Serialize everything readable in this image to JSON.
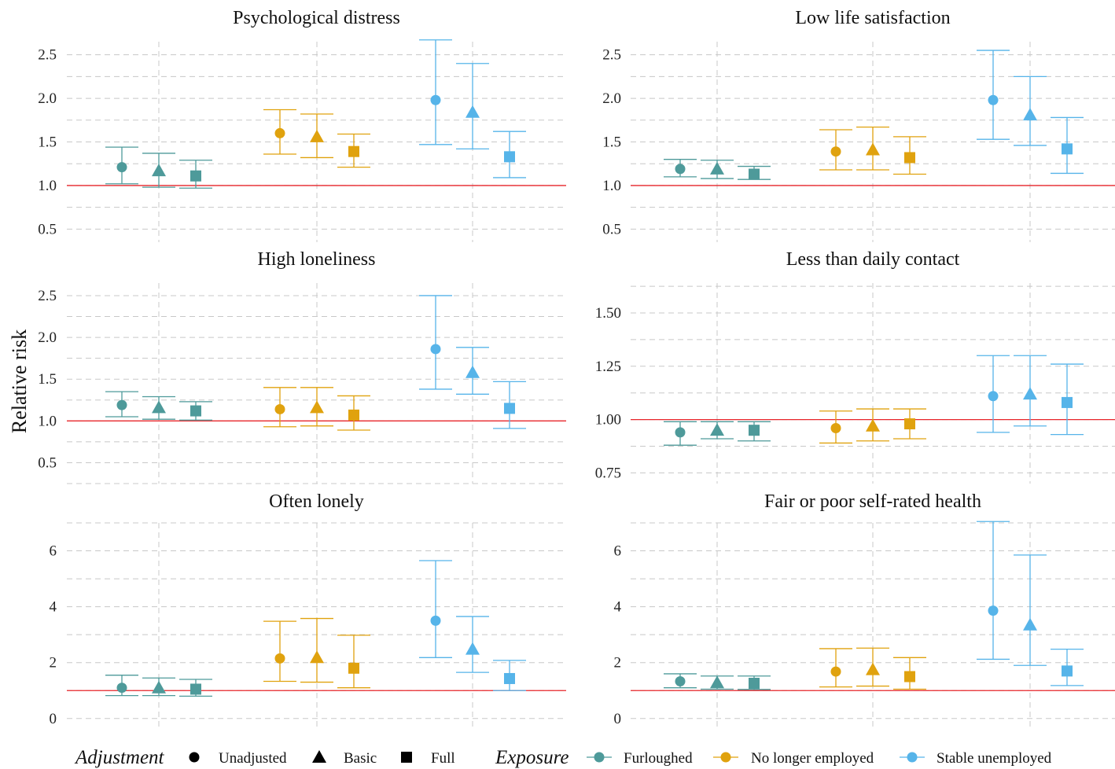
{
  "colors": {
    "Furloughed": "#4e9a9a",
    "No longer employed": "#e0a20e",
    "Stable unemployed": "#56b4e9",
    "reference_line": "#e8262b"
  },
  "y_axis_label": "Relative risk",
  "legend": {
    "adjustment_title": "Adjustment",
    "adjustment_items": [
      {
        "label": "Unadjusted",
        "shape": "circle"
      },
      {
        "label": "Basic",
        "shape": "triangle"
      },
      {
        "label": "Full",
        "shape": "square"
      }
    ],
    "exposure_title": "Exposure",
    "exposure_items": [
      "Furloughed",
      "No longer employed",
      "Stable unemployed"
    ]
  },
  "chart_data": [
    {
      "type": "errorbar",
      "title": "Psychological distress",
      "ylim": [
        0.35,
        2.65
      ],
      "yticks": [
        0.5,
        1.0,
        1.5,
        2.0,
        2.5
      ],
      "tick_labels": [
        "0.5",
        "1.0",
        "1.5",
        "2.0",
        "2.5"
      ],
      "reference": 1.0,
      "points": [
        {
          "exposure": "Furloughed",
          "adjustment": "Unadjusted",
          "rr": 1.21,
          "lo": 1.02,
          "hi": 1.44
        },
        {
          "exposure": "Furloughed",
          "adjustment": "Basic",
          "rr": 1.17,
          "lo": 0.98,
          "hi": 1.37
        },
        {
          "exposure": "Furloughed",
          "adjustment": "Full",
          "rr": 1.11,
          "lo": 0.97,
          "hi": 1.29
        },
        {
          "exposure": "No longer employed",
          "adjustment": "Unadjusted",
          "rr": 1.6,
          "lo": 1.36,
          "hi": 1.87
        },
        {
          "exposure": "No longer employed",
          "adjustment": "Basic",
          "rr": 1.56,
          "lo": 1.32,
          "hi": 1.82
        },
        {
          "exposure": "No longer employed",
          "adjustment": "Full",
          "rr": 1.39,
          "lo": 1.21,
          "hi": 1.59
        },
        {
          "exposure": "Stable unemployed",
          "adjustment": "Unadjusted",
          "rr": 1.98,
          "lo": 1.47,
          "hi": 2.67
        },
        {
          "exposure": "Stable unemployed",
          "adjustment": "Basic",
          "rr": 1.84,
          "lo": 1.42,
          "hi": 2.4
        },
        {
          "exposure": "Stable unemployed",
          "adjustment": "Full",
          "rr": 1.33,
          "lo": 1.09,
          "hi": 1.62
        }
      ]
    },
    {
      "type": "errorbar",
      "title": "Low life satisfaction",
      "ylim": [
        0.35,
        2.65
      ],
      "yticks": [
        0.5,
        1.0,
        1.5,
        2.0,
        2.5
      ],
      "tick_labels": [
        "0.5",
        "1.0",
        "1.5",
        "2.0",
        "2.5"
      ],
      "reference": 1.0,
      "points": [
        {
          "exposure": "Furloughed",
          "adjustment": "Unadjusted",
          "rr": 1.19,
          "lo": 1.1,
          "hi": 1.3
        },
        {
          "exposure": "Furloughed",
          "adjustment": "Basic",
          "rr": 1.19,
          "lo": 1.08,
          "hi": 1.29
        },
        {
          "exposure": "Furloughed",
          "adjustment": "Full",
          "rr": 1.13,
          "lo": 1.07,
          "hi": 1.22
        },
        {
          "exposure": "No longer employed",
          "adjustment": "Unadjusted",
          "rr": 1.39,
          "lo": 1.18,
          "hi": 1.64
        },
        {
          "exposure": "No longer employed",
          "adjustment": "Basic",
          "rr": 1.41,
          "lo": 1.18,
          "hi": 1.67
        },
        {
          "exposure": "No longer employed",
          "adjustment": "Full",
          "rr": 1.32,
          "lo": 1.13,
          "hi": 1.56
        },
        {
          "exposure": "Stable unemployed",
          "adjustment": "Unadjusted",
          "rr": 1.98,
          "lo": 1.53,
          "hi": 2.55
        },
        {
          "exposure": "Stable unemployed",
          "adjustment": "Basic",
          "rr": 1.81,
          "lo": 1.46,
          "hi": 2.25
        },
        {
          "exposure": "Stable unemployed",
          "adjustment": "Full",
          "rr": 1.42,
          "lo": 1.14,
          "hi": 1.78
        }
      ]
    },
    {
      "type": "errorbar",
      "title": "High loneliness",
      "ylim": [
        0.25,
        2.65
      ],
      "yticks": [
        0.5,
        1.0,
        1.5,
        2.0,
        2.5
      ],
      "tick_labels": [
        "0.5",
        "1.0",
        "1.5",
        "2.0",
        "2.5"
      ],
      "reference": 1.0,
      "points": [
        {
          "exposure": "Furloughed",
          "adjustment": "Unadjusted",
          "rr": 1.19,
          "lo": 1.05,
          "hi": 1.35
        },
        {
          "exposure": "Furloughed",
          "adjustment": "Basic",
          "rr": 1.16,
          "lo": 1.02,
          "hi": 1.29
        },
        {
          "exposure": "Furloughed",
          "adjustment": "Full",
          "rr": 1.12,
          "lo": 1.01,
          "hi": 1.23
        },
        {
          "exposure": "No longer employed",
          "adjustment": "Unadjusted",
          "rr": 1.14,
          "lo": 0.93,
          "hi": 1.4
        },
        {
          "exposure": "No longer employed",
          "adjustment": "Basic",
          "rr": 1.16,
          "lo": 0.94,
          "hi": 1.4
        },
        {
          "exposure": "No longer employed",
          "adjustment": "Full",
          "rr": 1.07,
          "lo": 0.89,
          "hi": 1.3
        },
        {
          "exposure": "Stable unemployed",
          "adjustment": "Unadjusted",
          "rr": 1.86,
          "lo": 1.38,
          "hi": 2.5
        },
        {
          "exposure": "Stable unemployed",
          "adjustment": "Basic",
          "rr": 1.58,
          "lo": 1.32,
          "hi": 1.88
        },
        {
          "exposure": "Stable unemployed",
          "adjustment": "Full",
          "rr": 1.15,
          "lo": 0.91,
          "hi": 1.47
        }
      ]
    },
    {
      "type": "errorbar",
      "title": "Less than daily contact",
      "ylim": [
        0.7,
        1.64
      ],
      "yticks": [
        0.75,
        1.0,
        1.25,
        1.5
      ],
      "tick_labels": [
        "0.75",
        "1.00",
        "1.25",
        "1.50"
      ],
      "reference": 1.0,
      "points": [
        {
          "exposure": "Furloughed",
          "adjustment": "Unadjusted",
          "rr": 0.94,
          "lo": 0.88,
          "hi": 0.99
        },
        {
          "exposure": "Furloughed",
          "adjustment": "Basic",
          "rr": 0.95,
          "lo": 0.91,
          "hi": 0.99
        },
        {
          "exposure": "Furloughed",
          "adjustment": "Full",
          "rr": 0.95,
          "lo": 0.9,
          "hi": 0.99
        },
        {
          "exposure": "No longer employed",
          "adjustment": "Unadjusted",
          "rr": 0.96,
          "lo": 0.89,
          "hi": 1.04
        },
        {
          "exposure": "No longer employed",
          "adjustment": "Basic",
          "rr": 0.97,
          "lo": 0.9,
          "hi": 1.05
        },
        {
          "exposure": "No longer employed",
          "adjustment": "Full",
          "rr": 0.98,
          "lo": 0.91,
          "hi": 1.05
        },
        {
          "exposure": "Stable unemployed",
          "adjustment": "Unadjusted",
          "rr": 1.11,
          "lo": 0.94,
          "hi": 1.3
        },
        {
          "exposure": "Stable unemployed",
          "adjustment": "Basic",
          "rr": 1.12,
          "lo": 0.97,
          "hi": 1.3
        },
        {
          "exposure": "Stable unemployed",
          "adjustment": "Full",
          "rr": 1.08,
          "lo": 0.93,
          "hi": 1.26
        }
      ]
    },
    {
      "type": "errorbar",
      "title": "Often lonely",
      "ylim": [
        -0.4,
        7.0
      ],
      "yticks": [
        0,
        2,
        4,
        6
      ],
      "tick_labels": [
        "0",
        "2",
        "4",
        "6"
      ],
      "reference": 1.0,
      "points": [
        {
          "exposure": "Furloughed",
          "adjustment": "Unadjusted",
          "rr": 1.1,
          "lo": 0.82,
          "hi": 1.55
        },
        {
          "exposure": "Furloughed",
          "adjustment": "Basic",
          "rr": 1.1,
          "lo": 0.82,
          "hi": 1.45
        },
        {
          "exposure": "Furloughed",
          "adjustment": "Full",
          "rr": 1.05,
          "lo": 0.8,
          "hi": 1.4
        },
        {
          "exposure": "No longer employed",
          "adjustment": "Unadjusted",
          "rr": 2.15,
          "lo": 1.33,
          "hi": 3.48
        },
        {
          "exposure": "No longer employed",
          "adjustment": "Basic",
          "rr": 2.18,
          "lo": 1.3,
          "hi": 3.58
        },
        {
          "exposure": "No longer employed",
          "adjustment": "Full",
          "rr": 1.8,
          "lo": 1.1,
          "hi": 2.98
        },
        {
          "exposure": "Stable unemployed",
          "adjustment": "Unadjusted",
          "rr": 3.5,
          "lo": 2.18,
          "hi": 5.65
        },
        {
          "exposure": "Stable unemployed",
          "adjustment": "Basic",
          "rr": 2.48,
          "lo": 1.65,
          "hi": 3.65
        },
        {
          "exposure": "Stable unemployed",
          "adjustment": "Full",
          "rr": 1.43,
          "lo": 1.0,
          "hi": 2.08
        }
      ]
    },
    {
      "type": "errorbar",
      "title": "Fair or poor self-rated health",
      "ylim": [
        -0.4,
        7.0
      ],
      "yticks": [
        0,
        2,
        4,
        6
      ],
      "tick_labels": [
        "0",
        "2",
        "4",
        "6"
      ],
      "reference": 1.0,
      "points": [
        {
          "exposure": "Furloughed",
          "adjustment": "Unadjusted",
          "rr": 1.33,
          "lo": 1.1,
          "hi": 1.6
        },
        {
          "exposure": "Furloughed",
          "adjustment": "Basic",
          "rr": 1.28,
          "lo": 1.05,
          "hi": 1.52
        },
        {
          "exposure": "Furloughed",
          "adjustment": "Full",
          "rr": 1.26,
          "lo": 1.04,
          "hi": 1.52
        },
        {
          "exposure": "No longer employed",
          "adjustment": "Unadjusted",
          "rr": 1.68,
          "lo": 1.13,
          "hi": 2.5
        },
        {
          "exposure": "No longer employed",
          "adjustment": "Basic",
          "rr": 1.75,
          "lo": 1.16,
          "hi": 2.52
        },
        {
          "exposure": "No longer employed",
          "adjustment": "Full",
          "rr": 1.5,
          "lo": 1.05,
          "hi": 2.18
        },
        {
          "exposure": "Stable unemployed",
          "adjustment": "Unadjusted",
          "rr": 3.86,
          "lo": 2.12,
          "hi": 7.05
        },
        {
          "exposure": "Stable unemployed",
          "adjustment": "Basic",
          "rr": 3.35,
          "lo": 1.9,
          "hi": 5.85
        },
        {
          "exposure": "Stable unemployed",
          "adjustment": "Full",
          "rr": 1.7,
          "lo": 1.18,
          "hi": 2.48
        }
      ]
    }
  ]
}
